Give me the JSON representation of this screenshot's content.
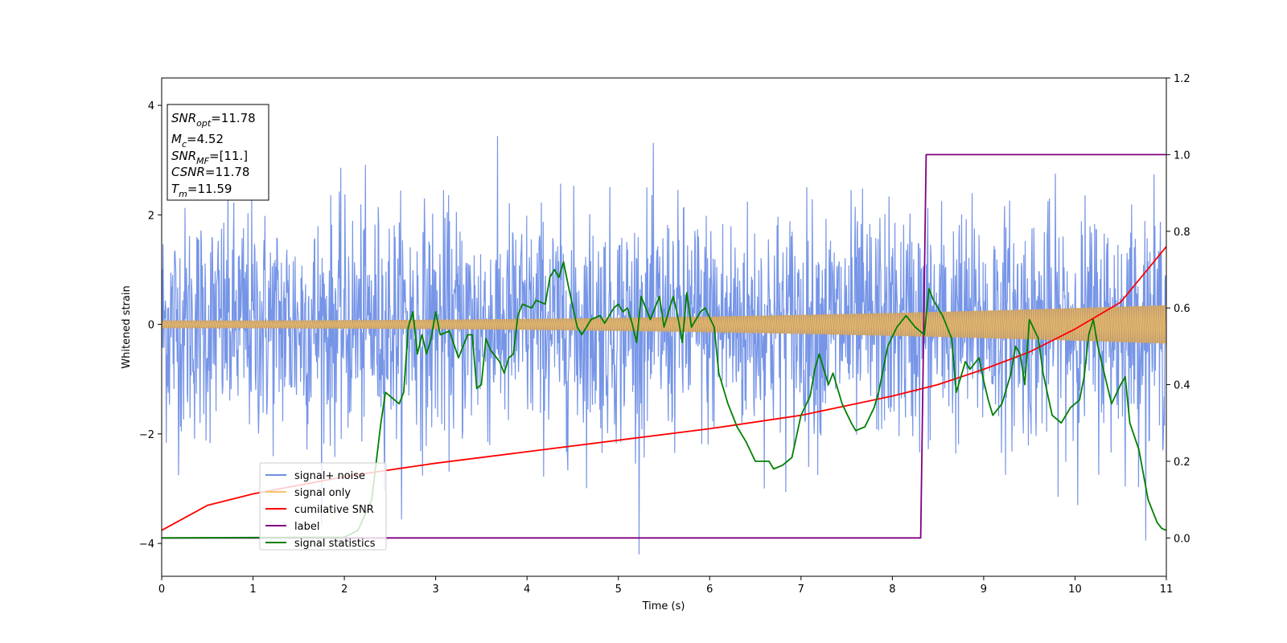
{
  "chart_data": {
    "type": "line",
    "xlabel": "Time (s)",
    "ylabel": "Whitened strain",
    "xlim": [
      0,
      11
    ],
    "ylim": [
      -4.6,
      4.5
    ],
    "y2lim": [
      -0.1,
      1.2
    ],
    "x_ticks": [
      0,
      1,
      2,
      3,
      4,
      5,
      6,
      7,
      8,
      9,
      10,
      11
    ],
    "y_ticks": [
      -4,
      -2,
      0,
      2,
      4
    ],
    "y2_ticks": [
      "0.0",
      "0.2",
      "0.4",
      "0.6",
      "0.8",
      "1.0",
      "1.2"
    ],
    "y2_tick_values": [
      0.0,
      0.2,
      0.4,
      0.6,
      0.8,
      1.0,
      1.2
    ],
    "legend_position": "lower-left",
    "info_box": {
      "snr_opt": "11.78",
      "mc": "4.52",
      "snr_mf": "[11.]",
      "csnr": "11.78",
      "tm": "11.59"
    },
    "series": [
      {
        "name": "signal+ noise",
        "color": "#6f8fe6",
        "axis": "left",
        "description_stats": {
          "mean": 0,
          "std": 1.0
        },
        "t_range": [
          0,
          11
        ],
        "sample_count": 2200
      },
      {
        "name": "signal only",
        "color": "#f5c46b",
        "axis": "left",
        "envelope_start": 0.07,
        "envelope_end": 0.35,
        "t_range": [
          0,
          11
        ]
      },
      {
        "name": "cumilative SNR",
        "color": "#ff0000",
        "axis": "right",
        "points": [
          [
            0,
            0.02
          ],
          [
            0.5,
            0.085
          ],
          [
            1,
            0.115
          ],
          [
            2,
            0.16
          ],
          [
            3,
            0.195
          ],
          [
            4,
            0.225
          ],
          [
            5,
            0.255
          ],
          [
            6,
            0.285
          ],
          [
            7,
            0.32
          ],
          [
            8,
            0.37
          ],
          [
            8.5,
            0.4
          ],
          [
            9,
            0.44
          ],
          [
            9.5,
            0.485
          ],
          [
            10,
            0.545
          ],
          [
            10.5,
            0.615
          ],
          [
            11,
            0.76
          ]
        ]
      },
      {
        "name": "label",
        "color": "#800080",
        "axis": "right",
        "points": [
          [
            0,
            0.0
          ],
          [
            8.31,
            0.0
          ],
          [
            8.37,
            1.0
          ],
          [
            11,
            1.0
          ]
        ]
      },
      {
        "name": "signal statistics",
        "color": "#008000",
        "axis": "right",
        "points": [
          [
            0,
            0.0
          ],
          [
            1,
            0.001
          ],
          [
            2,
            0.002
          ],
          [
            2.15,
            0.02
          ],
          [
            2.3,
            0.1
          ],
          [
            2.4,
            0.3
          ],
          [
            2.45,
            0.38
          ],
          [
            2.55,
            0.36
          ],
          [
            2.6,
            0.35
          ],
          [
            2.65,
            0.38
          ],
          [
            2.7,
            0.55
          ],
          [
            2.75,
            0.59
          ],
          [
            2.8,
            0.48
          ],
          [
            2.85,
            0.53
          ],
          [
            2.9,
            0.48
          ],
          [
            2.95,
            0.52
          ],
          [
            3.0,
            0.59
          ],
          [
            3.05,
            0.53
          ],
          [
            3.15,
            0.54
          ],
          [
            3.25,
            0.47
          ],
          [
            3.35,
            0.53
          ],
          [
            3.4,
            0.53
          ],
          [
            3.45,
            0.39
          ],
          [
            3.5,
            0.4
          ],
          [
            3.55,
            0.52
          ],
          [
            3.6,
            0.49
          ],
          [
            3.7,
            0.46
          ],
          [
            3.75,
            0.43
          ],
          [
            3.8,
            0.47
          ],
          [
            3.85,
            0.48
          ],
          [
            3.9,
            0.58
          ],
          [
            3.95,
            0.61
          ],
          [
            4.05,
            0.6
          ],
          [
            4.1,
            0.62
          ],
          [
            4.2,
            0.61
          ],
          [
            4.25,
            0.68
          ],
          [
            4.3,
            0.7
          ],
          [
            4.35,
            0.68
          ],
          [
            4.4,
            0.72
          ],
          [
            4.45,
            0.66
          ],
          [
            4.55,
            0.55
          ],
          [
            4.6,
            0.53
          ],
          [
            4.7,
            0.57
          ],
          [
            4.8,
            0.58
          ],
          [
            4.85,
            0.56
          ],
          [
            4.95,
            0.6
          ],
          [
            5.0,
            0.61
          ],
          [
            5.05,
            0.59
          ],
          [
            5.1,
            0.6
          ],
          [
            5.15,
            0.56
          ],
          [
            5.2,
            0.51
          ],
          [
            5.25,
            0.63
          ],
          [
            5.35,
            0.57
          ],
          [
            5.45,
            0.63
          ],
          [
            5.5,
            0.55
          ],
          [
            5.6,
            0.63
          ],
          [
            5.65,
            0.58
          ],
          [
            5.7,
            0.51
          ],
          [
            5.75,
            0.64
          ],
          [
            5.8,
            0.55
          ],
          [
            5.9,
            0.59
          ],
          [
            5.95,
            0.6
          ],
          [
            6.05,
            0.55
          ],
          [
            6.1,
            0.43
          ],
          [
            6.2,
            0.35
          ],
          [
            6.3,
            0.29
          ],
          [
            6.4,
            0.25
          ],
          [
            6.5,
            0.2
          ],
          [
            6.55,
            0.2
          ],
          [
            6.65,
            0.2
          ],
          [
            6.7,
            0.18
          ],
          [
            6.8,
            0.19
          ],
          [
            6.9,
            0.21
          ],
          [
            7.0,
            0.32
          ],
          [
            7.1,
            0.37
          ],
          [
            7.15,
            0.44
          ],
          [
            7.2,
            0.48
          ],
          [
            7.25,
            0.44
          ],
          [
            7.3,
            0.4
          ],
          [
            7.35,
            0.43
          ],
          [
            7.45,
            0.35
          ],
          [
            7.55,
            0.3
          ],
          [
            7.6,
            0.28
          ],
          [
            7.7,
            0.29
          ],
          [
            7.8,
            0.34
          ],
          [
            7.85,
            0.38
          ],
          [
            7.95,
            0.5
          ],
          [
            8.05,
            0.55
          ],
          [
            8.15,
            0.58
          ],
          [
            8.25,
            0.55
          ],
          [
            8.35,
            0.53
          ],
          [
            8.4,
            0.65
          ],
          [
            8.45,
            0.62
          ],
          [
            8.55,
            0.58
          ],
          [
            8.65,
            0.52
          ],
          [
            8.7,
            0.38
          ],
          [
            8.8,
            0.46
          ],
          [
            8.85,
            0.44
          ],
          [
            8.95,
            0.47
          ],
          [
            9.0,
            0.41
          ],
          [
            9.05,
            0.36
          ],
          [
            9.1,
            0.32
          ],
          [
            9.2,
            0.35
          ],
          [
            9.3,
            0.43
          ],
          [
            9.35,
            0.5
          ],
          [
            9.4,
            0.48
          ],
          [
            9.45,
            0.4
          ],
          [
            9.5,
            0.57
          ],
          [
            9.6,
            0.52
          ],
          [
            9.65,
            0.43
          ],
          [
            9.75,
            0.32
          ],
          [
            9.85,
            0.3
          ],
          [
            9.95,
            0.34
          ],
          [
            10.05,
            0.36
          ],
          [
            10.1,
            0.42
          ],
          [
            10.15,
            0.53
          ],
          [
            10.2,
            0.57
          ],
          [
            10.25,
            0.5
          ],
          [
            10.3,
            0.45
          ],
          [
            10.4,
            0.35
          ],
          [
            10.5,
            0.4
          ],
          [
            10.55,
            0.42
          ],
          [
            10.6,
            0.3
          ],
          [
            10.7,
            0.23
          ],
          [
            10.8,
            0.1
          ],
          [
            10.9,
            0.04
          ],
          [
            10.95,
            0.025
          ],
          [
            11.0,
            0.02
          ]
        ]
      }
    ]
  }
}
